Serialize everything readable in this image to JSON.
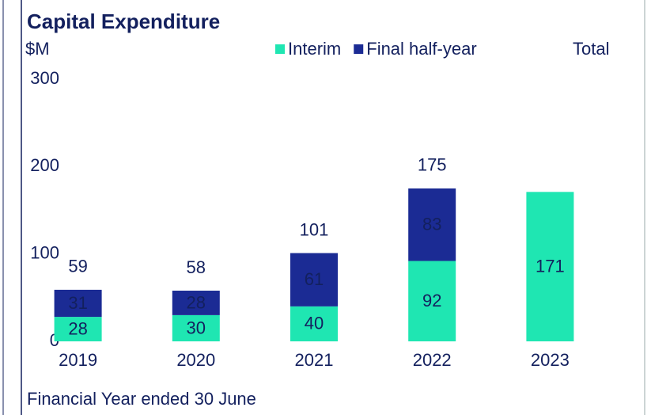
{
  "chart_data": {
    "type": "stacked_bar",
    "title": "Capital Expenditure",
    "y_label": "$M",
    "x_label": "Financial Year ended 30 June",
    "categories": [
      "2019",
      "2020",
      "2021",
      "2022",
      "2023"
    ],
    "series": [
      {
        "name": "Interim",
        "color": "#1fe6b2",
        "label_color": "#13205e",
        "values": [
          28,
          30,
          40,
          92,
          171
        ]
      },
      {
        "name": "Final half-year",
        "color": "#1b2b94",
        "label_color": "#ffffff",
        "values": [
          31,
          28,
          61,
          83,
          null
        ]
      }
    ],
    "totals": {
      "name": "Total",
      "color": "#f0645f",
      "values": [
        59,
        58,
        101,
        175,
        null
      ]
    },
    "ylim": [
      0,
      300
    ],
    "yticks": [
      0,
      100,
      200,
      300
    ],
    "grid": false
  }
}
